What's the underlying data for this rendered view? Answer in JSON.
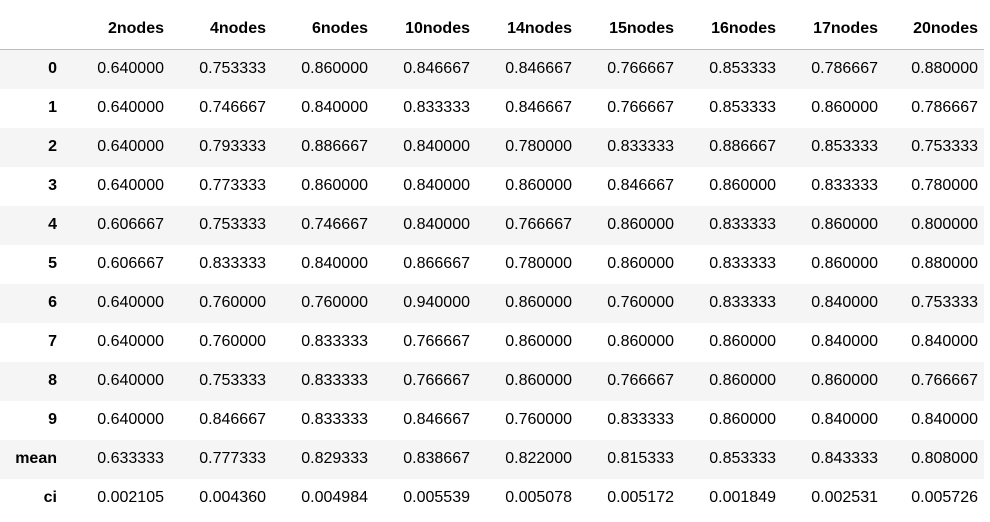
{
  "table": {
    "index_header": "",
    "columns": [
      "2nodes",
      "4nodes",
      "6nodes",
      "10nodes",
      "14nodes",
      "15nodes",
      "16nodes",
      "17nodes",
      "20nodes"
    ],
    "rows": [
      {
        "index": "0",
        "values": [
          "0.640000",
          "0.753333",
          "0.860000",
          "0.846667",
          "0.846667",
          "0.766667",
          "0.853333",
          "0.786667",
          "0.880000"
        ]
      },
      {
        "index": "1",
        "values": [
          "0.640000",
          "0.746667",
          "0.840000",
          "0.833333",
          "0.846667",
          "0.766667",
          "0.853333",
          "0.860000",
          "0.786667"
        ]
      },
      {
        "index": "2",
        "values": [
          "0.640000",
          "0.793333",
          "0.886667",
          "0.840000",
          "0.780000",
          "0.833333",
          "0.886667",
          "0.853333",
          "0.753333"
        ]
      },
      {
        "index": "3",
        "values": [
          "0.640000",
          "0.773333",
          "0.860000",
          "0.840000",
          "0.860000",
          "0.846667",
          "0.860000",
          "0.833333",
          "0.780000"
        ]
      },
      {
        "index": "4",
        "values": [
          "0.606667",
          "0.753333",
          "0.746667",
          "0.840000",
          "0.766667",
          "0.860000",
          "0.833333",
          "0.860000",
          "0.800000"
        ]
      },
      {
        "index": "5",
        "values": [
          "0.606667",
          "0.833333",
          "0.840000",
          "0.866667",
          "0.780000",
          "0.860000",
          "0.833333",
          "0.860000",
          "0.880000"
        ]
      },
      {
        "index": "6",
        "values": [
          "0.640000",
          "0.760000",
          "0.760000",
          "0.940000",
          "0.860000",
          "0.760000",
          "0.833333",
          "0.840000",
          "0.753333"
        ]
      },
      {
        "index": "7",
        "values": [
          "0.640000",
          "0.760000",
          "0.833333",
          "0.766667",
          "0.860000",
          "0.860000",
          "0.860000",
          "0.840000",
          "0.840000"
        ]
      },
      {
        "index": "8",
        "values": [
          "0.640000",
          "0.753333",
          "0.833333",
          "0.766667",
          "0.860000",
          "0.766667",
          "0.860000",
          "0.860000",
          "0.766667"
        ]
      },
      {
        "index": "9",
        "values": [
          "0.640000",
          "0.846667",
          "0.833333",
          "0.846667",
          "0.760000",
          "0.833333",
          "0.860000",
          "0.840000",
          "0.840000"
        ]
      },
      {
        "index": "mean",
        "values": [
          "0.633333",
          "0.777333",
          "0.829333",
          "0.838667",
          "0.822000",
          "0.815333",
          "0.853333",
          "0.843333",
          "0.808000"
        ]
      },
      {
        "index": "ci",
        "values": [
          "0.002105",
          "0.004360",
          "0.004984",
          "0.005539",
          "0.005078",
          "0.005172",
          "0.001849",
          "0.002531",
          "0.005726"
        ]
      }
    ]
  },
  "colors": {
    "stripe": "#f5f5f5",
    "header_rule": "#bdbdbd",
    "text": "#000000"
  }
}
